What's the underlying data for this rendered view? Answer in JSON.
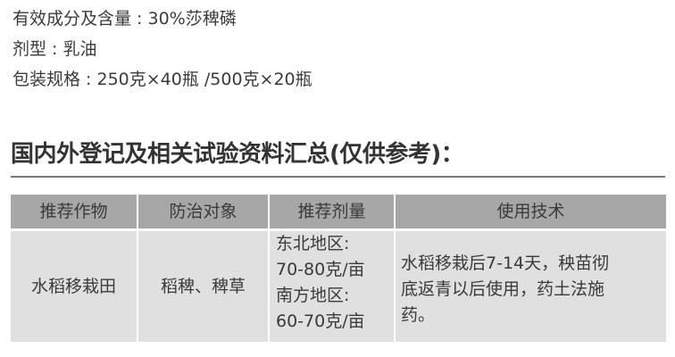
{
  "specs": [
    "有效成分及含量 : 30%莎稗磷",
    "剂型 : 乳油",
    "包装规格 : 250克×40瓶 /500克×20瓶"
  ],
  "heading": "国内外登记及相关试验资料汇总(仅供参考)：",
  "table": {
    "headers": [
      "推荐作物",
      "防治对象",
      "推荐剂量",
      "使用技术"
    ],
    "rows": [
      {
        "crop": "水稻移栽田",
        "target": "稻稗、稗草",
        "dosage": [
          "东北地区:",
          "70-80克/亩",
          "南方地区:",
          "60-70克/亩"
        ],
        "technique": [
          "水稻移栽后7-14天，秧苗彻",
          "底返青以后使用，药土法施",
          "药。"
        ]
      }
    ]
  }
}
